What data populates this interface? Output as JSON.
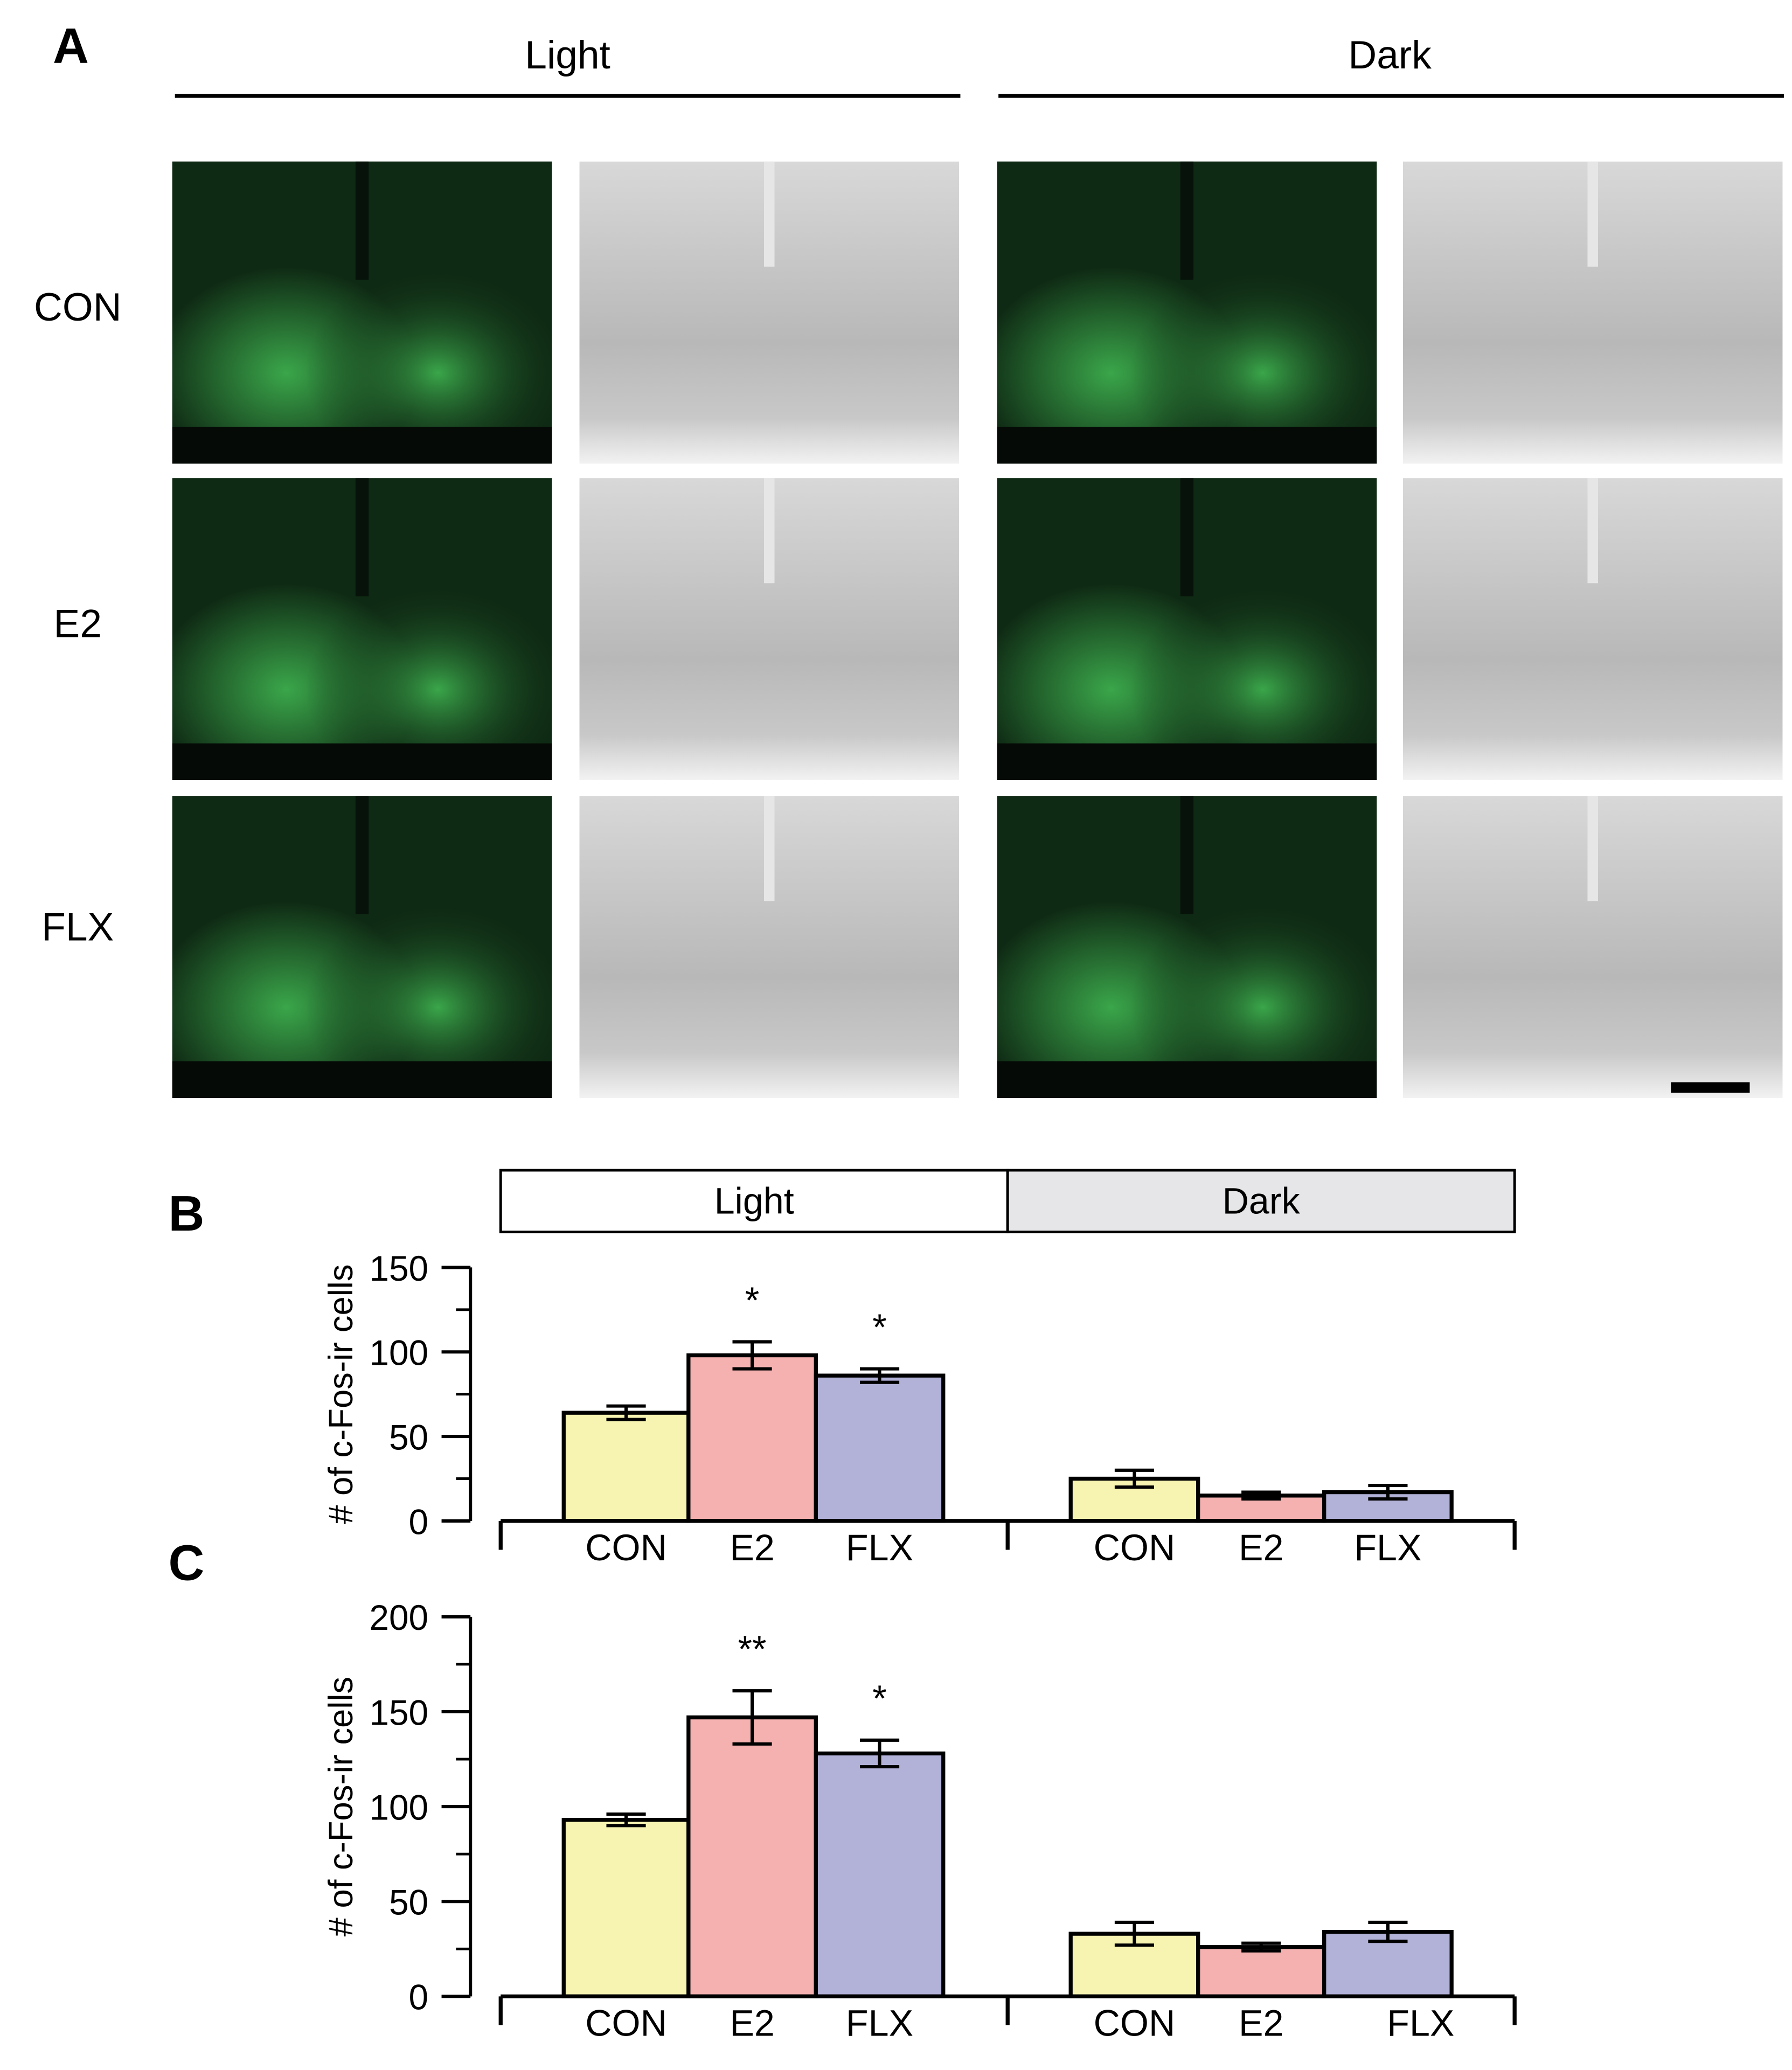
{
  "panel_a": {
    "panel_label": "A",
    "columns": [
      "Light",
      "Dark"
    ],
    "rows": [
      "CON",
      "E2",
      "FLX"
    ]
  },
  "chart_data": [
    {
      "type": "bar",
      "panel_label": "B",
      "y_label": "# of c-Fos-ir cells",
      "group_header": [
        "Light",
        "Dark"
      ],
      "categories": [
        "CON",
        "E2",
        "FLX",
        "CON",
        "E2",
        "FLX"
      ],
      "values": [
        64,
        98,
        86,
        25,
        15,
        17
      ],
      "errors": [
        4,
        8,
        4,
        5,
        2,
        4
      ],
      "significance": [
        null,
        "*",
        "*",
        null,
        null,
        null
      ],
      "colors": [
        "#f7f4b2",
        "#f4b1b0",
        "#b2b1d8",
        "#f7f4b2",
        "#f4b1b0",
        "#b2b1d8"
      ],
      "ylim": [
        0,
        150
      ],
      "yticks": [
        0,
        50,
        100,
        150
      ],
      "minor_yticks": [
        25,
        75,
        125
      ]
    },
    {
      "type": "bar",
      "panel_label": "C",
      "y_label": "# of c-Fos-ir cells",
      "categories": [
        "CON",
        "E2",
        "FLX",
        "CON",
        "E2",
        "FLX"
      ],
      "values": [
        93,
        147,
        128,
        33,
        26,
        34
      ],
      "errors": [
        3,
        14,
        7,
        6,
        2,
        5
      ],
      "significance": [
        null,
        "**",
        "*",
        null,
        null,
        null
      ],
      "colors": [
        "#f7f4b2",
        "#f4b1b0",
        "#b2b1d8",
        "#f7f4b2",
        "#f4b1b0",
        "#b2b1d8"
      ],
      "ylim": [
        0,
        200
      ],
      "yticks": [
        0,
        50,
        100,
        150,
        200
      ],
      "minor_yticks": [
        25,
        75,
        125,
        175
      ]
    }
  ]
}
